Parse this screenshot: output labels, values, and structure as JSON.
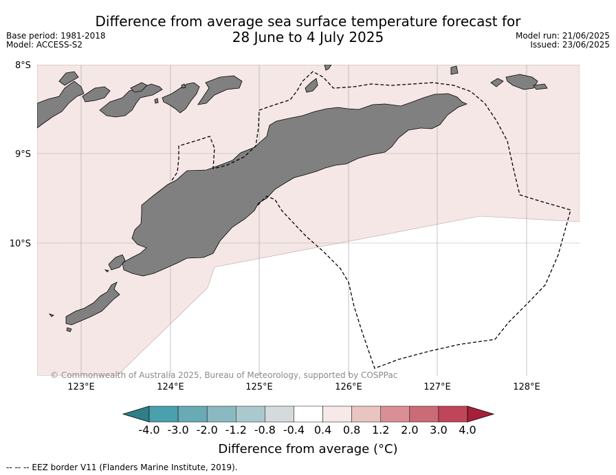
{
  "title": {
    "line1": "Difference from average sea surface temperature forecast for",
    "line2": "28 June to 4 July 2025"
  },
  "meta": {
    "base_period": "Base period: 1981-2018",
    "model": "Model: ACCESS-S2",
    "model_run": "Model run: 21/06/2025",
    "issued": "Issued: 23/06/2025"
  },
  "map": {
    "lat_labels": [
      "8°S",
      "9°S",
      "10°S"
    ],
    "lon_labels": [
      "123°E",
      "124°E",
      "125°E",
      "126°E",
      "127°E",
      "128°E"
    ],
    "land_color": "#808080",
    "anomaly_fill_color": "#f5e7e5",
    "anomaly_category": "0.4 to 0.8",
    "copyright": "© Commonwealth of Australia 2025, Bureau of Meteorology, supported by COSPPac"
  },
  "colorbar": {
    "tick_labels": [
      "-4.0",
      "-3.0",
      "-2.0",
      "-1.2",
      "-0.8",
      "-0.4",
      "0.4",
      "0.8",
      "1.2",
      "2.0",
      "3.0",
      "4.0"
    ],
    "colors": [
      "#2f7f89",
      "#4aa0ad",
      "#6aaab5",
      "#8bb8c1",
      "#abc9cc",
      "#d5dbdc",
      "#ffffff",
      "#f6e9e7",
      "#e8c5bf",
      "#d98f95",
      "#ca6b76",
      "#bf4658",
      "#a81f3c"
    ],
    "label": "Difference from average (°C)"
  },
  "legend": {
    "eez_text": "-- -- -- EEZ border V11 (Flanders Marine Institute, 2019)."
  }
}
